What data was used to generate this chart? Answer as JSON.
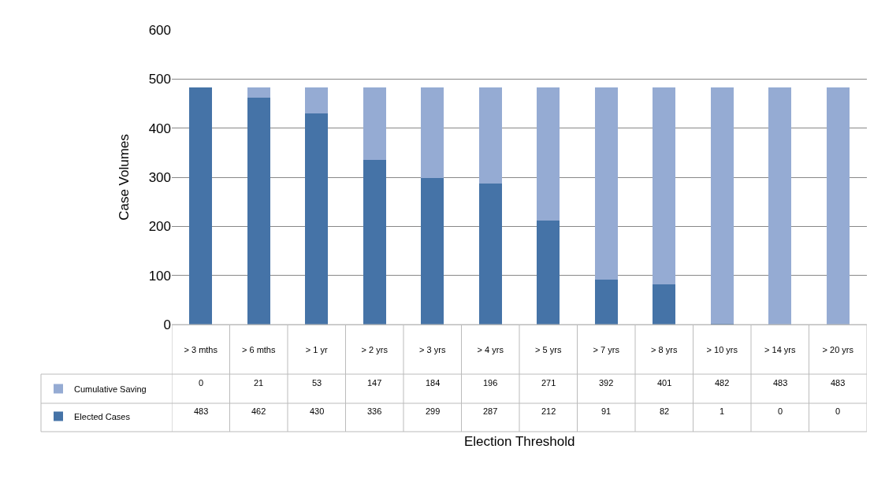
{
  "chart_data": {
    "type": "bar",
    "stacked": true,
    "annotations": [
      "Election Threshold"
    ],
    "ylabel": "Case Volumes",
    "categories": [
      "> 3 mths",
      "> 6 mths",
      "> 1 yr",
      "> 2 yrs",
      "> 3 yrs",
      "> 4 yrs",
      "> 5 yrs",
      "> 7 yrs",
      "> 8 yrs",
      "> 10 yrs",
      "> 14 yrs",
      "> 20 yrs"
    ],
    "series": [
      {
        "name": "Elected Cases",
        "color": "#4573a7",
        "values": [
          483,
          462,
          430,
          336,
          299,
          287,
          212,
          91,
          82,
          1,
          0,
          0
        ]
      },
      {
        "name": "Cumulative Saving",
        "color": "#95abd3",
        "values": [
          0,
          21,
          53,
          147,
          184,
          196,
          271,
          392,
          401,
          482,
          483,
          483
        ]
      }
    ],
    "ylim": [
      0,
      600
    ],
    "yticks": [
      0,
      100,
      200,
      300,
      400,
      500,
      600
    ],
    "grid": "y",
    "legend": "bottom left",
    "data_labels": true
  }
}
